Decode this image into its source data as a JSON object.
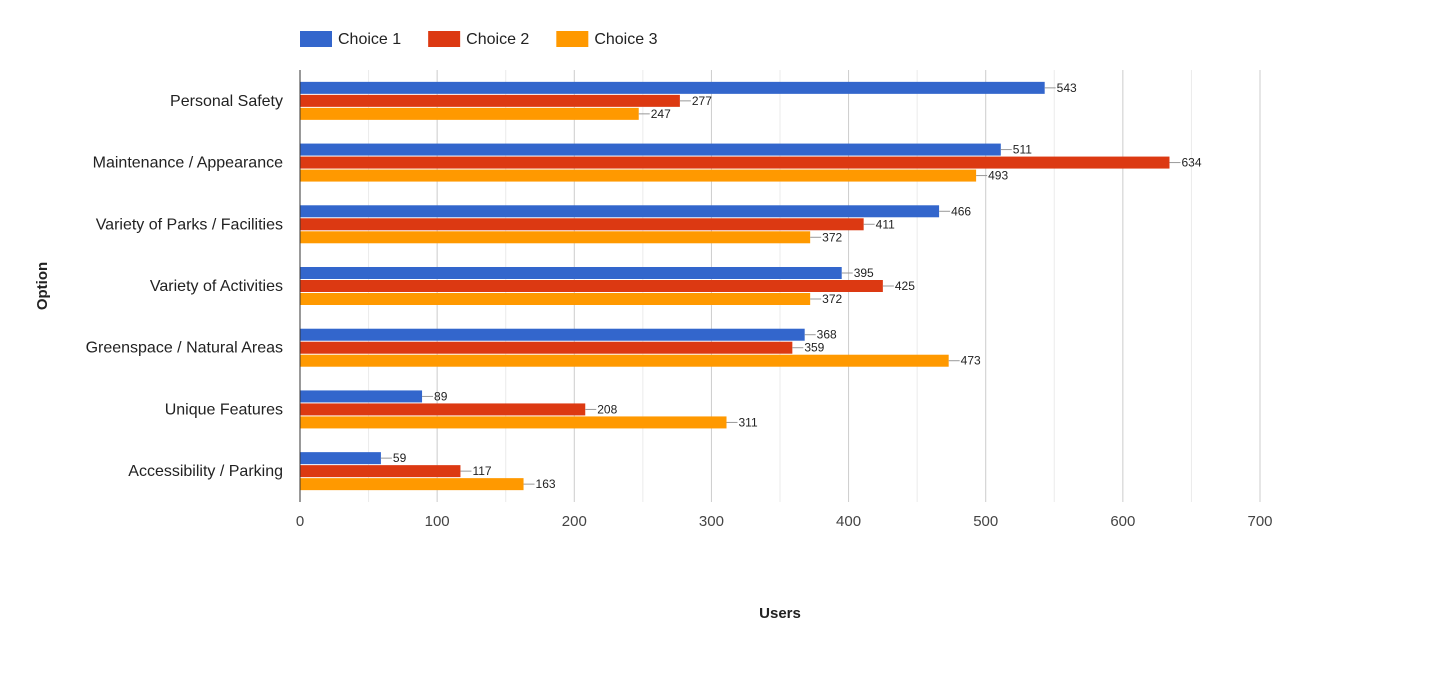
{
  "chart_data": {
    "type": "bar",
    "orientation": "horizontal",
    "title": "",
    "xlabel": "Users",
    "ylabel": "Option",
    "xlim": [
      0,
      700
    ],
    "xticks": [
      0,
      100,
      200,
      300,
      400,
      500,
      600,
      700
    ],
    "grid": true,
    "legend_position": "top-left",
    "categories": [
      "Personal Safety",
      "Maintenance / Appearance",
      "Variety of Parks / Facilities",
      "Variety of Activities",
      "Greenspace / Natural Areas",
      "Unique Features",
      "Accessibility / Parking"
    ],
    "series": [
      {
        "name": "Choice 1",
        "color": "#3366cc",
        "values": [
          543,
          511,
          466,
          395,
          368,
          89,
          59
        ]
      },
      {
        "name": "Choice 2",
        "color": "#dc3912",
        "values": [
          277,
          634,
          411,
          425,
          359,
          208,
          117
        ]
      },
      {
        "name": "Choice 3",
        "color": "#ff9900",
        "values": [
          247,
          493,
          372,
          372,
          473,
          311,
          163
        ]
      }
    ]
  }
}
